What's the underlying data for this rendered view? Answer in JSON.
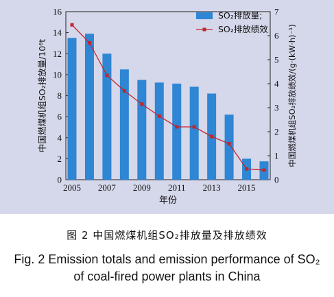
{
  "chart_data": {
    "type": "bar",
    "x": [
      2005,
      2006,
      2007,
      2008,
      2009,
      2010,
      2011,
      2012,
      2013,
      2014,
      2015,
      2016
    ],
    "x_tick_labels": [
      "2005",
      "2007",
      "2009",
      "2011",
      "2013",
      "2015"
    ],
    "xlabel": "年份",
    "ylabel_left": "中国燃煤机组SO₂排放量/10⁶t",
    "ylabel_right": "中国燃煤机组SO₂排放绩效/(g·(kW·h)⁻¹)",
    "ylim_left": [
      0,
      16
    ],
    "ylim_right": [
      0,
      7
    ],
    "yticks_left": [
      "0",
      "2",
      "4",
      "6",
      "8",
      "10",
      "12",
      "14",
      "16"
    ],
    "yticks_right": [
      "0",
      "1",
      "2",
      "3",
      "4",
      "5",
      "6",
      "7"
    ],
    "series": [
      {
        "name": "SO₂排放量;",
        "type": "bar",
        "axis": "left",
        "color": "#2e86d4",
        "values": [
          13.5,
          13.9,
          12.0,
          10.5,
          9.5,
          9.25,
          9.15,
          8.85,
          8.2,
          6.2,
          2.0,
          1.75
        ]
      },
      {
        "name": "SO₂排放绩效",
        "type": "line",
        "axis": "right",
        "color": "#c0272d",
        "values": [
          6.45,
          5.7,
          4.35,
          3.7,
          3.15,
          2.65,
          2.2,
          2.2,
          1.8,
          1.5,
          0.45,
          0.4
        ]
      }
    ],
    "legend_position": "top-right",
    "background": "#d5d7ea"
  },
  "caption": {
    "cn": "图 2   中国燃煤机组SO₂排放量及排放绩效",
    "en_line1": "Fig. 2    Emission totals and emission performance of SO₂",
    "en_line2": "of coal-fired power plants in China"
  }
}
